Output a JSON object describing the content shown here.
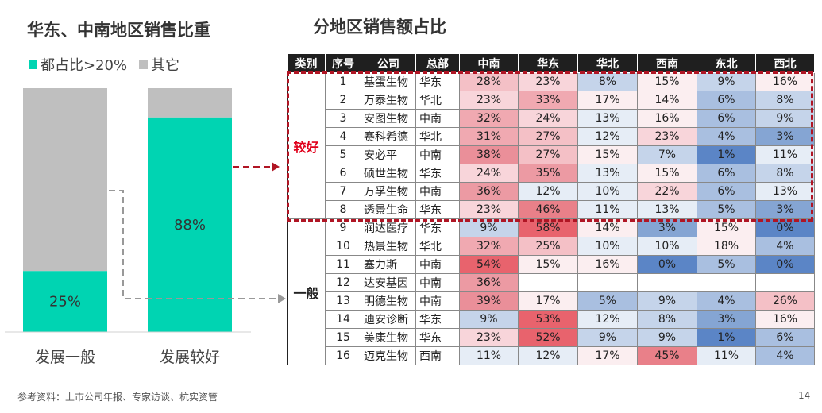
{
  "left_title": "华东、中南地区销售比重",
  "right_title": "分地区销售额占比",
  "legend": [
    {
      "label": "都占比>20%",
      "color": "#00d4b2"
    },
    {
      "label": "其它",
      "color": "#bfbfbf"
    }
  ],
  "chart_data": [
    {
      "type": "bar",
      "stacked": true,
      "title": "华东、中南地区销售比重",
      "categories": [
        "发展一般",
        "发展较好"
      ],
      "series": [
        {
          "name": "都占比>20%",
          "values": [
            25,
            88
          ],
          "color": "#00d4b2"
        },
        {
          "name": "其它",
          "values": [
            75,
            12
          ],
          "color": "#bfbfbf"
        }
      ],
      "data_labels": [
        "25%",
        "88%"
      ],
      "ylim": [
        0,
        100
      ],
      "xlabel": "",
      "ylabel": "",
      "legend_position": "top-left"
    },
    {
      "type": "table",
      "title": "分地区销售额占比",
      "headers": [
        "类别",
        "序号",
        "公司",
        "总部",
        "中南",
        "华东",
        "华北",
        "西南",
        "东北",
        "西北"
      ],
      "groups": [
        {
          "label": "较好",
          "rows": [
            {
              "no": "1",
              "company": "基蛋生物",
              "hq": "华东",
              "values": [
                "28%",
                "23%",
                "8%",
                "15%",
                "9%",
                "16%"
              ]
            },
            {
              "no": "2",
              "company": "万泰生物",
              "hq": "华北",
              "values": [
                "23%",
                "33%",
                "17%",
                "14%",
                "6%",
                "8%"
              ]
            },
            {
              "no": "3",
              "company": "安图生物",
              "hq": "中南",
              "values": [
                "32%",
                "24%",
                "13%",
                "16%",
                "6%",
                "9%"
              ]
            },
            {
              "no": "4",
              "company": "赛科希德",
              "hq": "华北",
              "values": [
                "31%",
                "27%",
                "12%",
                "23%",
                "4%",
                "3%"
              ]
            },
            {
              "no": "5",
              "company": "安必平",
              "hq": "中南",
              "values": [
                "38%",
                "27%",
                "15%",
                "7%",
                "1%",
                "11%"
              ]
            },
            {
              "no": "6",
              "company": "硕世生物",
              "hq": "华东",
              "values": [
                "24%",
                "35%",
                "13%",
                "15%",
                "6%",
                "8%"
              ]
            },
            {
              "no": "7",
              "company": "万孚生物",
              "hq": "中南",
              "values": [
                "36%",
                "12%",
                "10%",
                "22%",
                "6%",
                "13%"
              ]
            },
            {
              "no": "8",
              "company": "透景生命",
              "hq": "华东",
              "values": [
                "23%",
                "46%",
                "11%",
                "13%",
                "5%",
                "3%"
              ]
            }
          ]
        },
        {
          "label": "一般",
          "rows": [
            {
              "no": "9",
              "company": "润达医疗",
              "hq": "华东",
              "values": [
                "9%",
                "58%",
                "14%",
                "3%",
                "15%",
                "0%"
              ]
            },
            {
              "no": "10",
              "company": "热景生物",
              "hq": "华北",
              "values": [
                "32%",
                "25%",
                "10%",
                "10%",
                "18%",
                "4%"
              ]
            },
            {
              "no": "11",
              "company": "塞力斯",
              "hq": "中南",
              "values": [
                "54%",
                "15%",
                "16%",
                "0%",
                "5%",
                "0%"
              ]
            },
            {
              "no": "12",
              "company": "达安基因",
              "hq": "中南",
              "values": [
                "36%",
                "",
                "",
                "",
                "",
                ""
              ]
            },
            {
              "no": "13",
              "company": "明德生物",
              "hq": "中南",
              "values": [
                "39%",
                "17%",
                "5%",
                "9%",
                "4%",
                "26%"
              ]
            },
            {
              "no": "14",
              "company": "迪安诊断",
              "hq": "华东",
              "values": [
                "9%",
                "53%",
                "12%",
                "8%",
                "3%",
                "16%"
              ]
            },
            {
              "no": "15",
              "company": "美康生物",
              "hq": "华东",
              "values": [
                "23%",
                "52%",
                "9%",
                "9%",
                "1%",
                "6%"
              ]
            },
            {
              "no": "16",
              "company": "迈克生物",
              "hq": "西南",
              "values": [
                "11%",
                "12%",
                "17%",
                "45%",
                "11%",
                "4%"
              ]
            }
          ]
        }
      ]
    }
  ],
  "footer": {
    "source": "参考资料：上市公司年报、专家访谈、杭实资管",
    "page": "14"
  }
}
